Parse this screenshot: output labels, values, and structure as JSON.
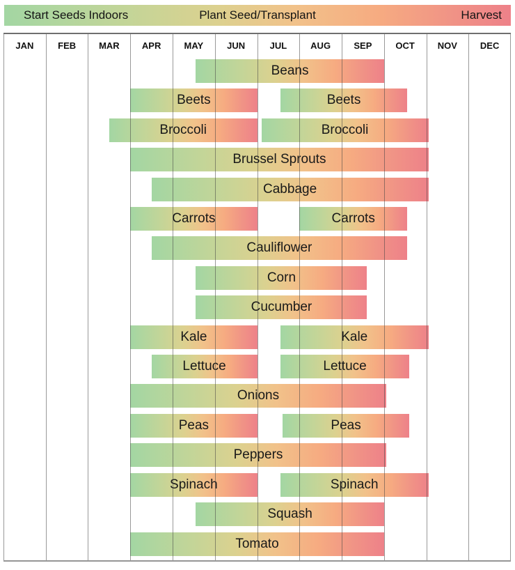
{
  "legend": {
    "items": [
      {
        "label": "Start Seeds Indoors",
        "color": "#a3d6a3"
      },
      {
        "label": "Plant Seed/Transplant",
        "color": "#f1c28a"
      },
      {
        "label": "Harvest",
        "color": "#ee8189"
      }
    ]
  },
  "colors": {
    "gradient_stops": [
      "#a3d6a3",
      "#c3d598",
      "#dcd18f",
      "#f1c28a",
      "#f6ab81",
      "#ee8189"
    ],
    "gridline": "#999999",
    "top_border": "#6f6f6f",
    "bottom_border": "#969696",
    "text": "#141414",
    "background": "#ffffff"
  },
  "chart_data": {
    "type": "bar",
    "subtype": "gantt-planting-calendar",
    "title": "",
    "xlabel": "",
    "ylabel": "",
    "axis_unit": "month index (0 = Jan 1, 12 = Dec 31)",
    "xlim": [
      0,
      12
    ],
    "grid": true,
    "legend_position": "top",
    "legend_labels": [
      "Start Seeds Indoors",
      "Plant Seed/Transplant",
      "Harvest"
    ],
    "months": [
      "JAN",
      "FEB",
      "MAR",
      "APR",
      "MAY",
      "JUN",
      "JUL",
      "AUG",
      "SEP",
      "OCT",
      "NOV",
      "DEC"
    ],
    "bar_gradient_note": "each bar fades green (start seeds) through tan/orange (plant/transplant) to salmon (harvest) across its own length",
    "rows": [
      {
        "label": "Beans",
        "bars": [
          {
            "start": 4.55,
            "end": 9.0,
            "range": "May 15 - Sep 30"
          }
        ]
      },
      {
        "label": "Beets",
        "bars": [
          {
            "start": 3.0,
            "end": 6.0,
            "range": "Apr 1 - Jun 30"
          },
          {
            "start": 6.55,
            "end": 9.55,
            "range": "Jul 15 - Oct 15"
          }
        ]
      },
      {
        "label": "Broccoli",
        "bars": [
          {
            "start": 2.5,
            "end": 6.0,
            "range": "Mar 15 - Jun 30"
          },
          {
            "start": 6.1,
            "end": 10.05,
            "range": "Jul 1 - Oct 31"
          }
        ]
      },
      {
        "label": "Brussel Sprouts",
        "bars": [
          {
            "start": 3.0,
            "end": 10.05,
            "range": "Apr 1 - Oct 31"
          }
        ]
      },
      {
        "label": "Cabbage",
        "bars": [
          {
            "start": 3.5,
            "end": 10.05,
            "range": "Apr 15 - Oct 31"
          }
        ]
      },
      {
        "label": "Carrots",
        "bars": [
          {
            "start": 3.0,
            "end": 6.0,
            "range": "Apr 1 - Jun 30"
          },
          {
            "start": 7.0,
            "end": 9.55,
            "range": "Aug 1 - Oct 15"
          }
        ]
      },
      {
        "label": "Cauliflower",
        "bars": [
          {
            "start": 3.5,
            "end": 9.55,
            "range": "Apr 15 - Oct 15"
          }
        ]
      },
      {
        "label": "Corn",
        "bars": [
          {
            "start": 4.55,
            "end": 8.6,
            "range": "May 15 - Sep 18"
          }
        ]
      },
      {
        "label": "Cucumber",
        "bars": [
          {
            "start": 4.55,
            "end": 8.6,
            "range": "May 15 - Sep 18"
          }
        ]
      },
      {
        "label": "Kale",
        "bars": [
          {
            "start": 3.0,
            "end": 6.0,
            "range": "Apr 1 - Jun 30"
          },
          {
            "start": 6.55,
            "end": 10.05,
            "range": "Jul 15 - Oct 31"
          }
        ]
      },
      {
        "label": "Lettuce",
        "bars": [
          {
            "start": 3.5,
            "end": 6.0,
            "range": "Apr 15 - Jun 30"
          },
          {
            "start": 6.55,
            "end": 9.6,
            "range": "Jul 15 - Oct 15"
          }
        ]
      },
      {
        "label": "Onions",
        "bars": [
          {
            "start": 3.0,
            "end": 9.05,
            "range": "Apr 1 - Sep 30"
          }
        ]
      },
      {
        "label": "Peas",
        "bars": [
          {
            "start": 3.0,
            "end": 6.0,
            "range": "Apr 1 - Jun 30"
          },
          {
            "start": 6.6,
            "end": 9.6,
            "range": "Jul 15 - Oct 15"
          }
        ]
      },
      {
        "label": "Peppers",
        "bars": [
          {
            "start": 3.0,
            "end": 9.05,
            "range": "Apr 1 - Sep 30"
          }
        ]
      },
      {
        "label": "Spinach",
        "bars": [
          {
            "start": 3.0,
            "end": 6.0,
            "range": "Apr 1 - Jun 30"
          },
          {
            "start": 6.55,
            "end": 10.05,
            "range": "Jul 15 - Oct 31"
          }
        ]
      },
      {
        "label": "Squash",
        "bars": [
          {
            "start": 4.55,
            "end": 9.0,
            "range": "May 15 - Sep 30"
          }
        ]
      },
      {
        "label": "Tomato",
        "bars": [
          {
            "start": 3.0,
            "end": 9.0,
            "range": "Apr 1 - Sep 30"
          }
        ]
      }
    ]
  }
}
